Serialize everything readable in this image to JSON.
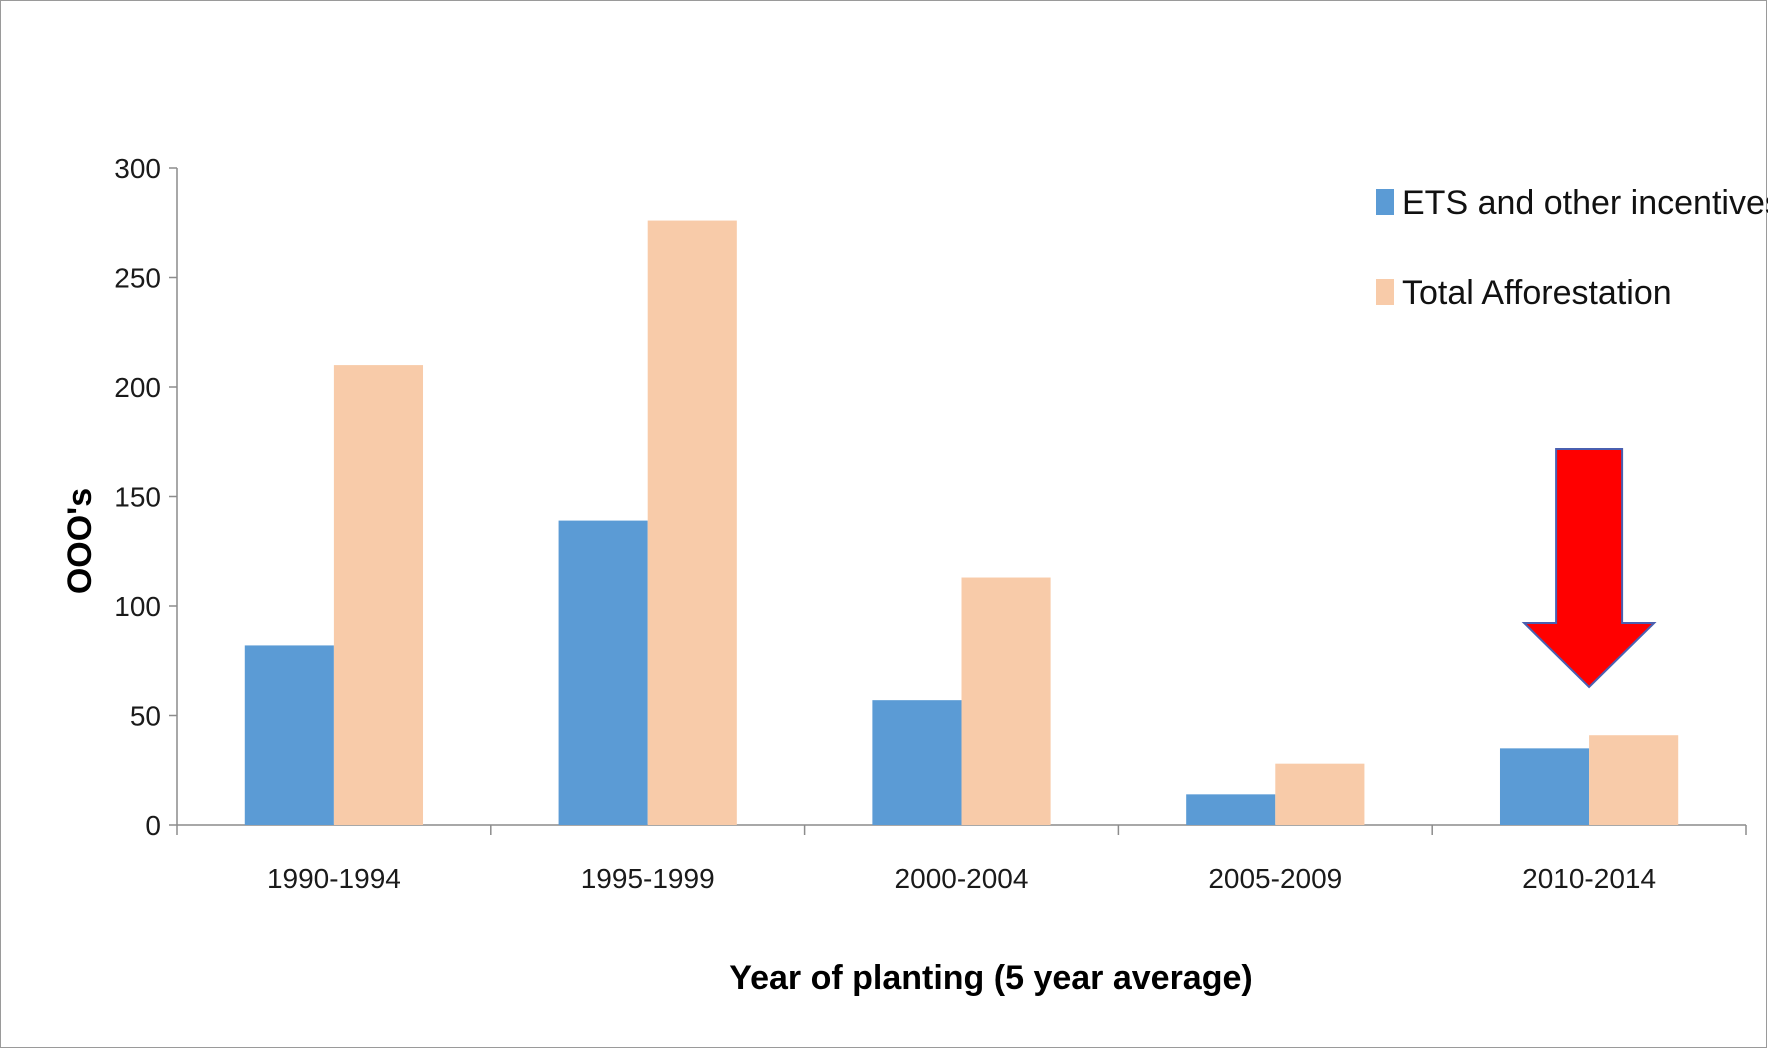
{
  "chart_data": {
    "type": "bar",
    "categories": [
      "1990-1994",
      "1995-1999",
      "2000-2004",
      "2005-2009",
      "2010-2014"
    ],
    "series": [
      {
        "name": "ETS and other incentives",
        "values": [
          82,
          139,
          57,
          14,
          35
        ],
        "color": "#5b9bd5"
      },
      {
        "name": "Total Afforestation",
        "values": [
          210,
          276,
          113,
          28,
          41
        ],
        "color": "#f8cba9"
      }
    ],
    "title": "",
    "xlabel": "Year of planting (5 year average)",
    "ylabel": "OOO's",
    "ylim": [
      0,
      300
    ],
    "yticks": [
      0,
      50,
      100,
      150,
      200,
      250,
      300
    ],
    "grid": false,
    "legend_position": "top-right",
    "annotation": {
      "type": "arrow",
      "points_to": "2010-2014",
      "color": "#ff0000"
    }
  }
}
